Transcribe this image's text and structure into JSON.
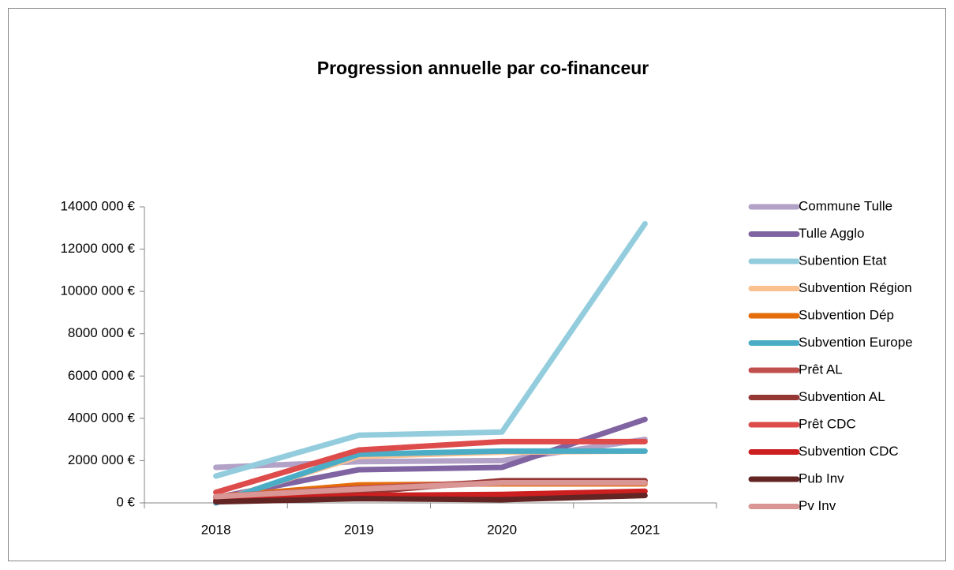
{
  "chart_data": {
    "type": "line",
    "title": "Progression annuelle par co-financeur",
    "categories": [
      "2018",
      "2019",
      "2020",
      "2021"
    ],
    "ylim": [
      0,
      14000000
    ],
    "yticks": [
      {
        "value": 0,
        "label": "0 €"
      },
      {
        "value": 2000000,
        "label": "2000 000 €"
      },
      {
        "value": 4000000,
        "label": "4000 000 €"
      },
      {
        "value": 6000000,
        "label": "6000 000 €"
      },
      {
        "value": 8000000,
        "label": "8000 000 €"
      },
      {
        "value": 10000000,
        "label": "10000 000 €"
      },
      {
        "value": 12000000,
        "label": "12000 000 €"
      },
      {
        "value": 14000000,
        "label": "14000 000 €"
      }
    ],
    "grid": false,
    "legend": "right",
    "series": [
      {
        "name": "Commune Tulle",
        "color": "#b3a2c7",
        "values": [
          1680000,
          1950000,
          2000000,
          3000000
        ]
      },
      {
        "name": "Tulle Agglo",
        "color": "#8064a2",
        "values": [
          250000,
          1570000,
          1680000,
          3950000
        ]
      },
      {
        "name": "Subention Etat",
        "color": "#93cddd",
        "values": [
          1270000,
          3200000,
          3350000,
          13200000
        ]
      },
      {
        "name": "Subvention Région",
        "color": "#fac090",
        "values": [
          50000,
          2200000,
          2400000,
          2450000
        ]
      },
      {
        "name": "Subvention Dép",
        "color": "#e46c0a",
        "values": [
          300000,
          850000,
          900000,
          900000
        ]
      },
      {
        "name": "Subvention Europe",
        "color": "#4bacc6",
        "values": [
          0,
          2300000,
          2450000,
          2450000
        ]
      },
      {
        "name": "Prêt AL",
        "color": "#c0504d",
        "values": [
          300000,
          700000,
          1000000,
          1000000
        ]
      },
      {
        "name": "Subvention AL",
        "color": "#953735",
        "values": [
          100000,
          500000,
          1050000,
          1050000
        ]
      },
      {
        "name": "Prêt CDC",
        "color": "#dd4b4b",
        "values": [
          500000,
          2500000,
          2900000,
          2900000
        ]
      },
      {
        "name": "Subvention CDC",
        "color": "#cc1f1f",
        "values": [
          100000,
          350000,
          400000,
          550000
        ]
      },
      {
        "name": "Pub Inv",
        "color": "#632523",
        "values": [
          50000,
          200000,
          150000,
          350000
        ]
      },
      {
        "name": "Pv Inv",
        "color": "#d99694",
        "values": [
          300000,
          650000,
          950000,
          950000
        ]
      }
    ]
  }
}
